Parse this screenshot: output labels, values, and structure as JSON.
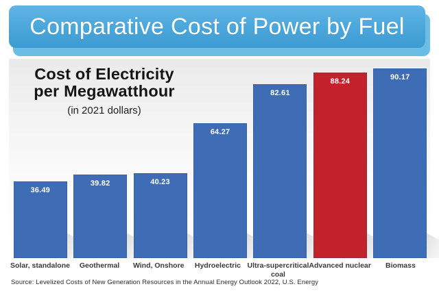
{
  "banner": {
    "title": "Comparative Cost of Power by Fuel"
  },
  "chart": {
    "title_line1": "Cost of Electricity",
    "title_line2": "per Megawatthour",
    "subtitle": "(in 2021 dollars)",
    "source": "Source: Levelized Costs of New Generation Resources in the Annual Energy Outlook 2022, U.S. Energy",
    "category_lines": [
      [
        "Solar, standalone"
      ],
      [
        "Geothermal"
      ],
      [
        "Wind, Onshore"
      ],
      [
        "Hydroelectric"
      ],
      [
        "Ultra-supercritical",
        "coal"
      ],
      [
        "Advanced nuclear"
      ],
      [
        "Biomass"
      ]
    ]
  },
  "chart_data": {
    "type": "bar",
    "title": "Cost of Electricity per Megawatthour",
    "subtitle": "(in 2021 dollars)",
    "categories": [
      "Solar, standalone",
      "Geothermal",
      "Wind, Onshore",
      "Hydroelectric",
      "Ultra-supercritical coal",
      "Advanced nuclear",
      "Biomass"
    ],
    "values": [
      36.49,
      39.82,
      40.23,
      64.27,
      82.61,
      88.24,
      90.17
    ],
    "value_labels": [
      "36.49",
      "39.82",
      "40.23",
      "64.27",
      "82.61",
      "88.24",
      "90.17"
    ],
    "bar_colors": [
      "#3e6db5",
      "#3e6db5",
      "#3e6db5",
      "#3e6db5",
      "#3e6db5",
      "#c2232b",
      "#3e6db5"
    ],
    "highlighted_category": "Advanced nuclear",
    "value_label_position": "inside-top",
    "xlabel": "",
    "ylabel": "",
    "ylim": [
      0,
      95
    ],
    "grid": false,
    "legend": null,
    "source": "Source: Levelized Costs of New Generation Resources in the Annual Energy Outlook 2022, U.S. Energy"
  },
  "colors": {
    "banner_gradient_top": "#61b4e4",
    "banner_gradient_bottom": "#3d9bd2",
    "banner_shadow": "#6cbde6",
    "banner_text": "#ffffff",
    "bar_blue": "#3e6db5",
    "bar_red": "#c2232b",
    "value_label_text": "#ffffff",
    "chart_bg_top": "#eaeaea",
    "chart_bg_bottom": "#ffffff"
  }
}
